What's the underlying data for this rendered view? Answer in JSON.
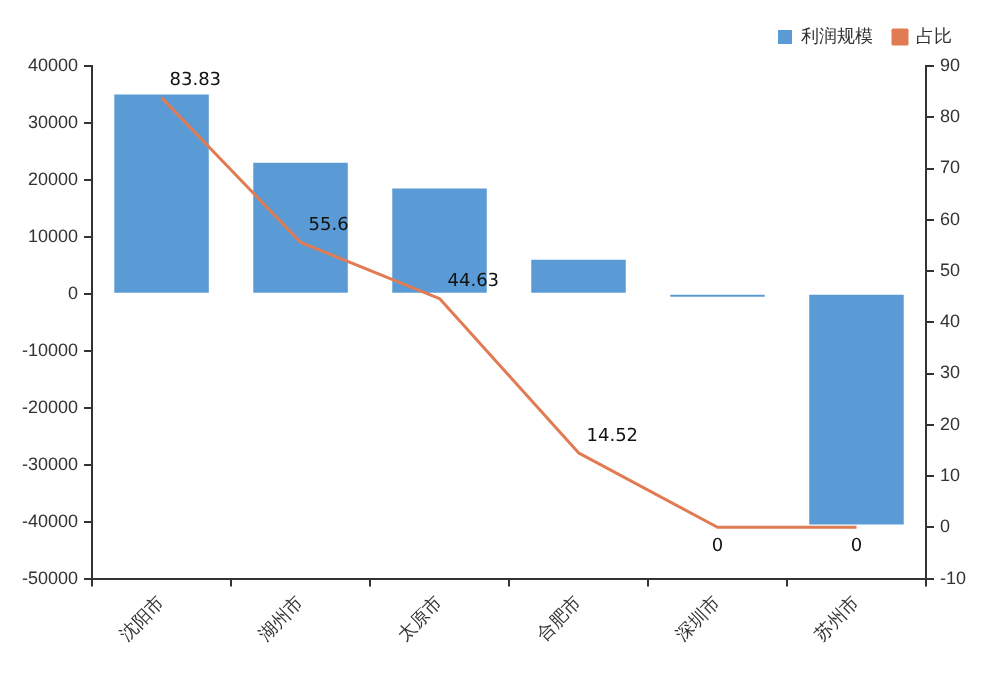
{
  "chart_data": {
    "type": "bar",
    "categories": [
      "沈阳市",
      "湖州市",
      "太原市",
      "合肥市",
      "深圳市",
      "苏州市"
    ],
    "series": [
      {
        "name": "利润规模",
        "color": "#5b9bd5",
        "values": [
          35000,
          23000,
          18500,
          6000,
          -500,
          -40500
        ]
      },
      {
        "name": "占比",
        "type": "line",
        "axis": "y2",
        "color": "#e07b53",
        "values": [
          83.83,
          55.6,
          44.63,
          14.52,
          0,
          0
        ],
        "value_labels": [
          "83.83",
          "55.6",
          "44.63",
          "14.52",
          "0",
          "0"
        ]
      }
    ],
    "ylim": [
      -50000,
      40000
    ],
    "yticks": [
      -50000,
      -40000,
      -30000,
      -20000,
      -10000,
      0,
      10000,
      20000,
      30000,
      40000
    ],
    "y2lim": [
      -10,
      90
    ],
    "y2ticks": [
      -10,
      0,
      10,
      20,
      30,
      40,
      50,
      60,
      70,
      80,
      90
    ],
    "grid": false,
    "legend": "top right",
    "marker": "none",
    "line_style": "solid"
  }
}
